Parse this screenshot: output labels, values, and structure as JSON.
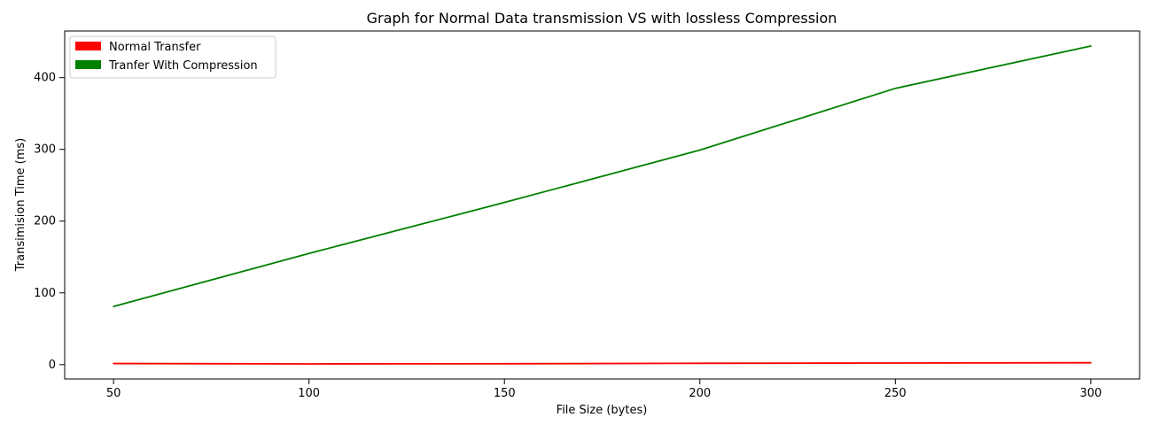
{
  "chart_data": {
    "type": "line",
    "title": "Graph for Normal Data transmission VS with lossless Compression",
    "xlabel": "File Size (bytes)",
    "ylabel": "Transimision Time (ms)",
    "x": [
      50,
      100,
      150,
      200,
      250,
      300
    ],
    "series": [
      {
        "name": "Normal Transfer",
        "color": "#ff0000",
        "values": [
          1.5,
          1.0,
          1.2,
          1.8,
          2.2,
          2.6
        ]
      },
      {
        "name": "Tranfer With Compression",
        "color": "#008000",
        "values": [
          81,
          155,
          226,
          299,
          385,
          444
        ]
      }
    ],
    "xlim": [
      38,
      1286
    ],
    "xlim_data": [
      37.5,
      312.5
    ],
    "ylim": [
      -20,
      465
    ],
    "xticks": [
      50,
      100,
      150,
      200,
      250,
      300
    ],
    "yticks": [
      0,
      100,
      200,
      300,
      400
    ],
    "grid": false,
    "legend": "top-left"
  }
}
